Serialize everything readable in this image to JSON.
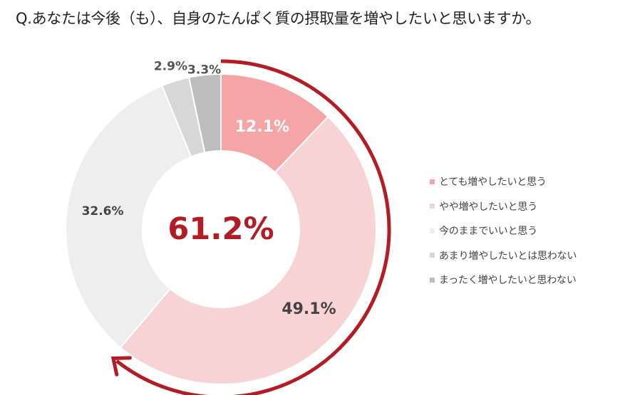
{
  "question": "Q.あなたは今後（も）、自身のたんぱく質の摂取量を増やしたいと思いますか。",
  "highlight": {
    "value": "61.2%",
    "color": "#b31b25"
  },
  "chart_data": {
    "type": "pie",
    "donut": true,
    "categories": [
      "とても増やしたいと思う",
      "やや増やしたいと思う",
      "今のままでいいと思う",
      "あまり増やしたいとは思わない",
      "まったく増やしたいと思わない"
    ],
    "values": [
      12.1,
      49.1,
      32.6,
      2.9,
      3.3
    ],
    "value_labels": [
      "12.1%",
      "49.1%",
      "32.6%",
      "2.9%",
      "3.3%"
    ],
    "colors": [
      "#f5a5a5",
      "#f8d3d3",
      "#eeeeee",
      "#d7d7d7",
      "#bdbdbd"
    ],
    "legend_position": "right",
    "center_label": "61.2%"
  }
}
